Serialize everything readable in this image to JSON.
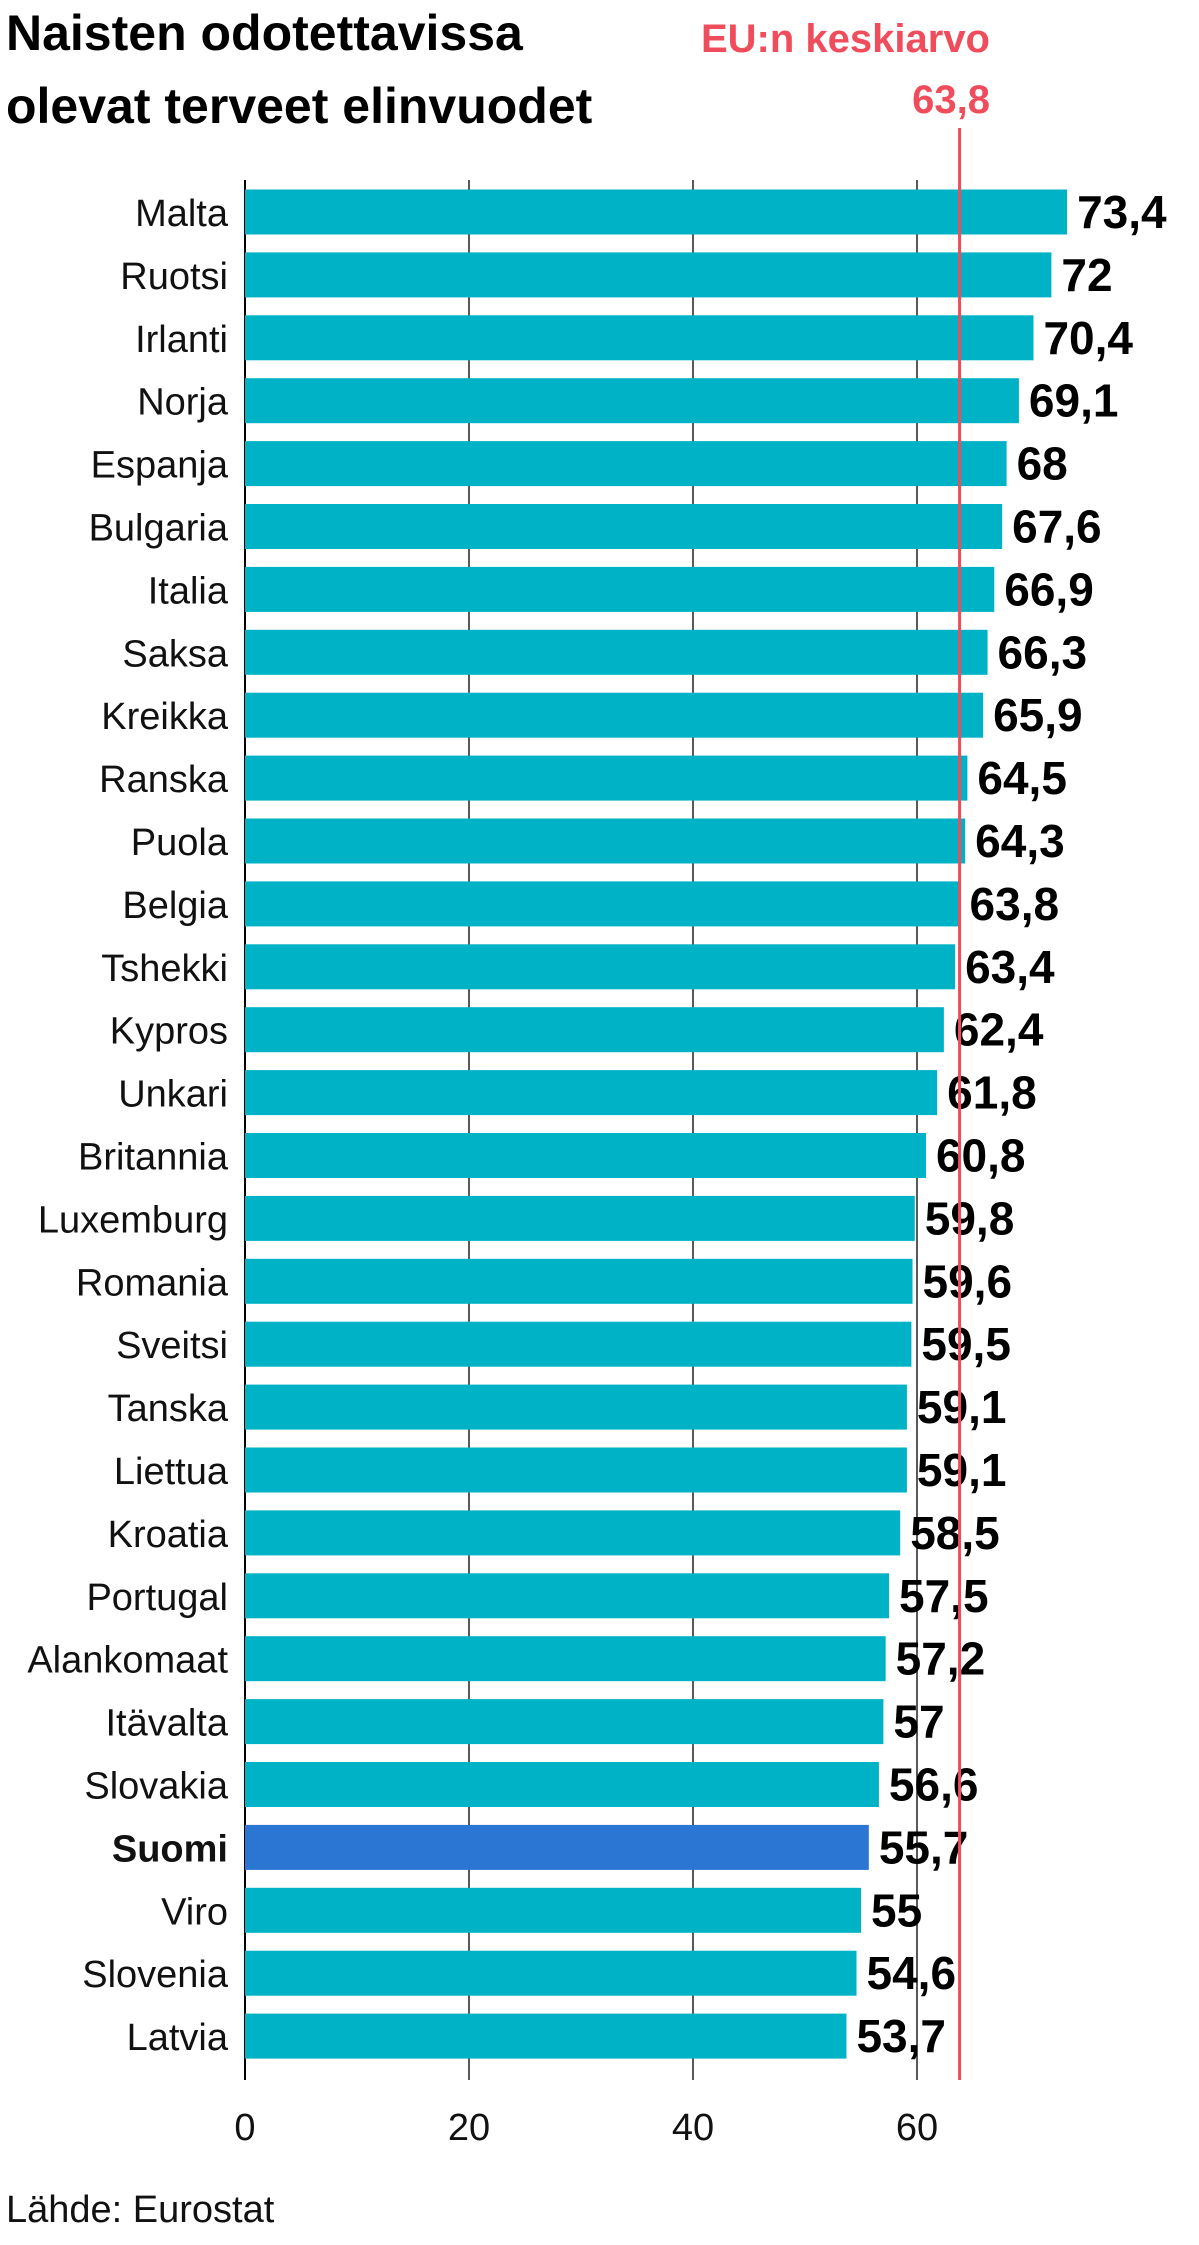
{
  "source": "Lähde: Eurostat",
  "colors": {
    "bar": "#00b2c5",
    "highlight": "#2a76d2",
    "average": "#f04d5c",
    "text": "#000000"
  },
  "chart_data": {
    "type": "bar",
    "orientation": "horizontal",
    "title_lines": [
      "Naisten odotettavissa",
      "olevat terveet elinvuodet"
    ],
    "reference_line": {
      "label": "EU:n keskiarvo",
      "value": 63.8,
      "value_label": "63,8"
    },
    "categories": [
      "Malta",
      "Ruotsi",
      "Irlanti",
      "Norja",
      "Espanja",
      "Bulgaria",
      "Italia",
      "Saksa",
      "Kreikka",
      "Ranska",
      "Puola",
      "Belgia",
      "Tshekki",
      "Kypros",
      "Unkari",
      "Britannia",
      "Luxemburg",
      "Romania",
      "Sveitsi",
      "Tanska",
      "Liettua",
      "Kroatia",
      "Portugal",
      "Alankomaat",
      "Itävalta",
      "Slovakia",
      "Suomi",
      "Viro",
      "Slovenia",
      "Latvia"
    ],
    "values": [
      73.4,
      72,
      70.4,
      69.1,
      68,
      67.6,
      66.9,
      66.3,
      65.9,
      64.5,
      64.3,
      63.8,
      63.4,
      62.4,
      61.8,
      60.8,
      59.8,
      59.6,
      59.5,
      59.1,
      59.1,
      58.5,
      57.5,
      57.2,
      57,
      56.6,
      55.7,
      55,
      54.6,
      53.7
    ],
    "value_labels": [
      "73,4",
      "72",
      "70,4",
      "69,1",
      "68",
      "67,6",
      "66,9",
      "66,3",
      "65,9",
      "64,5",
      "64,3",
      "63,8",
      "63,4",
      "62,4",
      "61,8",
      "60,8",
      "59,8",
      "59,6",
      "59,5",
      "59,1",
      "59,1",
      "58,5",
      "57,5",
      "57,2",
      "57",
      "56,6",
      "55,7",
      "55",
      "54,6",
      "53,7"
    ],
    "highlight": "Suomi",
    "xlim": [
      0,
      73.4
    ],
    "xticks": [
      0,
      20,
      40,
      60
    ],
    "grid": "vertical"
  }
}
